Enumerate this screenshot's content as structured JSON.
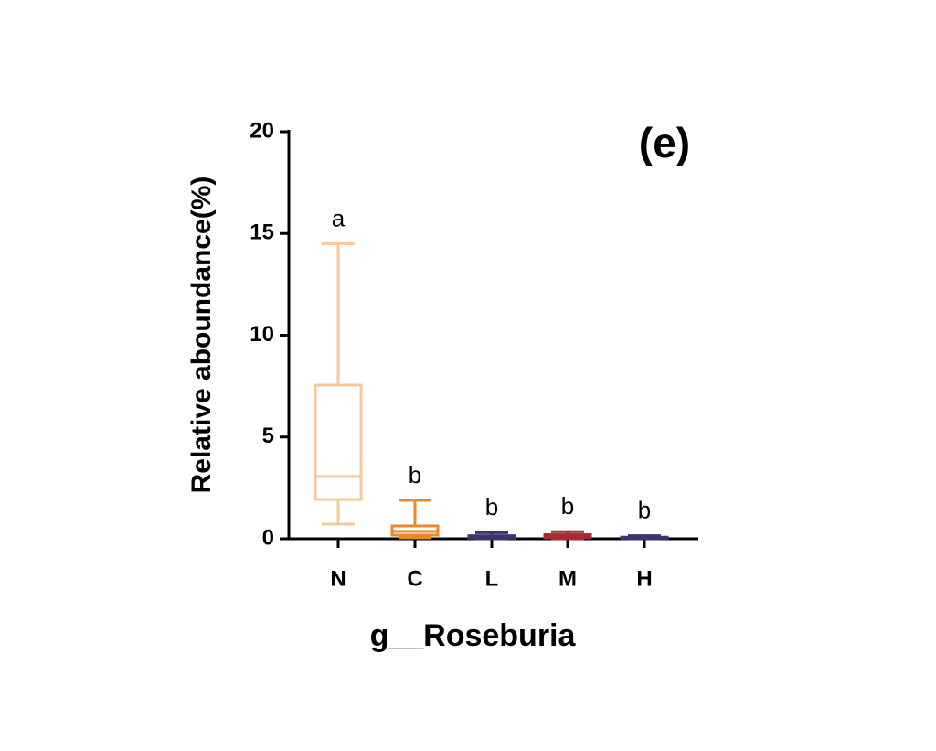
{
  "chart_data": {
    "type": "box",
    "panel_label": "(e)",
    "x_label": "g__Roseburia",
    "y_label": "Relative aboundance(%)",
    "categories": [
      "N",
      "C",
      "L",
      "M",
      "H"
    ],
    "boxes": [
      {
        "color": "#f5c89a",
        "min": 0.72,
        "q1": 1.93,
        "median": 3.06,
        "q3": 7.55,
        "max": 14.5
      },
      {
        "color": "#e8892a",
        "min": 0.05,
        "q1": 0.18,
        "median": 0.36,
        "q3": 0.63,
        "max": 1.89
      },
      {
        "color": "#3d3570",
        "min": 0,
        "q1": 0.03,
        "median": 0.08,
        "q3": 0.15,
        "max": 0.3
      },
      {
        "color": "#a52a35",
        "min": 0,
        "q1": 0.05,
        "median": 0.12,
        "q3": 0.2,
        "max": 0.35
      },
      {
        "color": "#3d3570",
        "min": 0,
        "q1": 0.01,
        "median": 0.04,
        "q3": 0.08,
        "max": 0.15
      }
    ],
    "group_labels": [
      "a",
      "b",
      "b",
      "b",
      "b"
    ],
    "ylim": [
      0,
      20
    ],
    "yticks": [
      0,
      5,
      10,
      15,
      20
    ]
  }
}
